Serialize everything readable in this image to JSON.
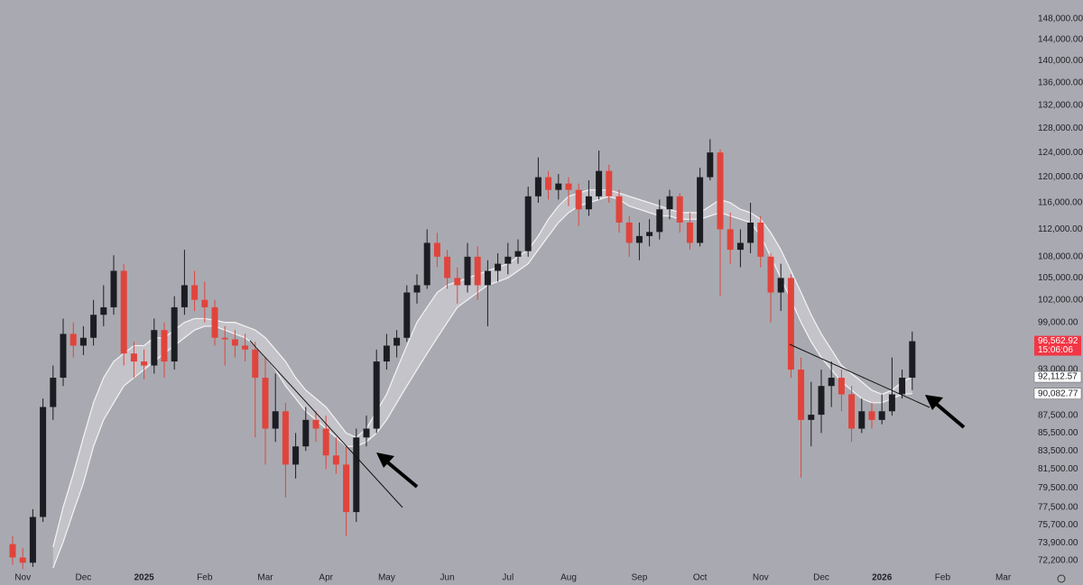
{
  "chart_data": {
    "type": "candlestick",
    "log": true,
    "ylim": [
      71340,
      151760
    ],
    "yticks": [
      {
        "value": 148000,
        "label": "148,000.00"
      },
      {
        "value": 144000,
        "label": "144,000.00"
      },
      {
        "value": 140000,
        "label": "140,000.00"
      },
      {
        "value": 136000,
        "label": "136,000.00"
      },
      {
        "value": 132000,
        "label": "132,000.00"
      },
      {
        "value": 128000,
        "label": "128,000.00"
      },
      {
        "value": 124000,
        "label": "124,000.00"
      },
      {
        "value": 120000,
        "label": "120,000.00"
      },
      {
        "value": 116000,
        "label": "116,000.00"
      },
      {
        "value": 112000,
        "label": "112,000.00"
      },
      {
        "value": 108000,
        "label": "108,000.00"
      },
      {
        "value": 105000,
        "label": "105,000.00"
      },
      {
        "value": 102000,
        "label": "102,000.00"
      },
      {
        "value": 99000,
        "label": "99,000.00"
      },
      {
        "value": 93000,
        "label": "93,000.00"
      },
      {
        "value": 87500,
        "label": "87,500.00"
      },
      {
        "value": 85500,
        "label": "85,500.00"
      },
      {
        "value": 83500,
        "label": "83,500.00"
      },
      {
        "value": 81500,
        "label": "81,500.00"
      },
      {
        "value": 79500,
        "label": "79,500.00"
      },
      {
        "value": 77500,
        "label": "77,500.00"
      },
      {
        "value": 75700,
        "label": "75,700.00"
      },
      {
        "value": 73900,
        "label": "73,900.00"
      },
      {
        "value": 72200,
        "label": "72,200.00"
      }
    ],
    "categories": [
      null,
      "Nov",
      null,
      null,
      null,
      null,
      null,
      "Dec",
      null,
      null,
      null,
      null,
      null,
      "2025",
      null,
      null,
      null,
      null,
      null,
      "Feb",
      null,
      null,
      null,
      null,
      null,
      "Mar",
      null,
      null,
      null,
      null,
      null,
      "Apr",
      null,
      null,
      null,
      null,
      null,
      "May",
      null,
      null,
      null,
      null,
      null,
      "Jun",
      null,
      null,
      null,
      null,
      null,
      "Jul",
      null,
      null,
      null,
      null,
      null,
      "Aug",
      null,
      null,
      null,
      null,
      null,
      null,
      "Sep",
      null,
      null,
      null,
      null,
      null,
      "Oct",
      null,
      null,
      null,
      null,
      null,
      "Nov",
      null,
      null,
      null,
      null,
      null,
      "Dec",
      null,
      null,
      null,
      null,
      null,
      "2026",
      null,
      null,
      null,
      null,
      null,
      "Feb",
      null,
      null,
      null,
      null,
      null,
      "Mar"
    ],
    "up_color": "#1c1d22",
    "down_color": "#e0443c",
    "open": [
      73800,
      72500,
      72000,
      76500,
      88500,
      92000,
      97500,
      96000,
      97000,
      100000,
      101000,
      106000,
      95000,
      94000,
      93500,
      98000,
      94000,
      101000,
      104000,
      102000,
      101000,
      97000,
      96800,
      96000,
      95500,
      92000,
      86000,
      88000,
      82000,
      84000,
      87000,
      86000,
      83000,
      82000,
      77000,
      85000,
      86000,
      94000,
      96000,
      97000,
      103000,
      104000,
      110000,
      108000,
      105000,
      104000,
      108000,
      104000,
      106000,
      107000,
      108000,
      108800,
      117000,
      120000,
      118000,
      119000,
      118000,
      115000,
      117000,
      121000,
      117000,
      113000,
      110000,
      111000,
      111600,
      115000,
      117000,
      113000,
      110000,
      120000,
      124000,
      112000,
      109000,
      110000,
      113000,
      108000,
      103000,
      105000,
      93000,
      87000,
      87600,
      91000,
      92000,
      90000,
      86000,
      88000,
      87000,
      88000,
      90000,
      92000,
      null,
      null,
      null,
      null,
      null,
      null,
      null,
      null,
      null
    ],
    "high": [
      74600,
      73400,
      77300,
      89500,
      93500,
      99500,
      99000,
      98500,
      102000,
      104000,
      108200,
      107000,
      96500,
      95500,
      99500,
      99000,
      102500,
      109000,
      106000,
      104500,
      102000,
      98500,
      98000,
      97500,
      96500,
      94500,
      92500,
      89000,
      85500,
      88500,
      88000,
      87500,
      85000,
      84000,
      86000,
      87500,
      95500,
      97500,
      98000,
      104000,
      105500,
      112000,
      111500,
      109000,
      106500,
      110000,
      109500,
      107500,
      108500,
      110000,
      110500,
      118500,
      123200,
      121000,
      120500,
      120000,
      119000,
      119500,
      124300,
      122000,
      118000,
      114000,
      113000,
      113500,
      116500,
      118000,
      117500,
      114500,
      121500,
      126200,
      124500,
      114500,
      112000,
      116000,
      114000,
      108500,
      107000,
      105500,
      94500,
      91500,
      93000,
      94000,
      93000,
      91000,
      89500,
      89000,
      90000,
      94500,
      93000,
      97800,
      null,
      null,
      null,
      null,
      null,
      null,
      null,
      null,
      null
    ],
    "low": [
      71800,
      71400,
      71600,
      76000,
      87000,
      91000,
      94500,
      94800,
      96000,
      98500,
      100000,
      93500,
      92000,
      91800,
      92500,
      92000,
      93000,
      100000,
      100500,
      99000,
      96000,
      93500,
      94500,
      94000,
      85000,
      82000,
      84500,
      78500,
      80500,
      83500,
      84500,
      81500,
      81000,
      74600,
      76000,
      84000,
      85500,
      93000,
      94500,
      96500,
      101500,
      103500,
      106500,
      103500,
      101500,
      103000,
      102000,
      98500,
      104500,
      105500,
      107000,
      108000,
      116000,
      116500,
      116500,
      115500,
      112500,
      114000,
      116500,
      116000,
      111500,
      108000,
      107500,
      109500,
      110500,
      113500,
      111500,
      109000,
      109500,
      119500,
      102500,
      107000,
      106500,
      108500,
      106500,
      99000,
      100500,
      92000,
      80600,
      84000,
      85500,
      88500,
      88000,
      84500,
      85500,
      86000,
      86500,
      87500,
      89500,
      90500,
      null,
      null,
      null,
      null,
      null,
      null,
      null,
      null,
      null
    ],
    "close": [
      72500,
      72000,
      76500,
      88500,
      92000,
      97500,
      96000,
      97000,
      100000,
      101000,
      106000,
      95000,
      94000,
      93500,
      98000,
      94000,
      101000,
      104000,
      102000,
      101000,
      97000,
      96800,
      96000,
      95500,
      92000,
      86000,
      88000,
      82000,
      84000,
      87000,
      86000,
      83000,
      82000,
      77000,
      85000,
      86000,
      94000,
      96000,
      97000,
      103000,
      104000,
      110000,
      108000,
      105000,
      104000,
      108000,
      104000,
      106000,
      107000,
      108000,
      108800,
      117000,
      120000,
      118000,
      119000,
      118000,
      115000,
      117000,
      121000,
      117000,
      113000,
      110000,
      111000,
      111600,
      115000,
      117000,
      113000,
      110000,
      120000,
      124000,
      112000,
      109000,
      110000,
      113000,
      108000,
      103000,
      105000,
      93000,
      87000,
      87600,
      91000,
      92000,
      90000,
      86000,
      88000,
      87000,
      88000,
      90000,
      92000,
      96562.92,
      null,
      null,
      null,
      null,
      null,
      null,
      null,
      null,
      null
    ],
    "band": {
      "color": "#f4f4f6",
      "upper": [
        null,
        null,
        null,
        null,
        73500,
        77500,
        81000,
        85000,
        89000,
        92000,
        94000,
        95000,
        96000,
        96000,
        97000,
        97000,
        98000,
        99000,
        99500,
        99500,
        99300,
        99000,
        99000,
        98500,
        98000,
        97000,
        95500,
        94000,
        92000,
        90500,
        89500,
        88500,
        87000,
        85500,
        85000,
        86000,
        88000,
        90000,
        93000,
        96000,
        99000,
        101000,
        103000,
        104000,
        104500,
        105000,
        105500,
        106000,
        106500,
        107000,
        108000,
        109000,
        111000,
        113500,
        115500,
        117000,
        117500,
        118000,
        118000,
        118000,
        117500,
        117000,
        116500,
        116000,
        115500,
        115000,
        114500,
        114500,
        114500,
        115500,
        116500,
        116000,
        115000,
        114500,
        113500,
        111500,
        109000,
        106000,
        103000,
        100000,
        97500,
        95500,
        93500,
        92500,
        91500,
        90500,
        90000,
        90500,
        91500,
        92112.57,
        null,
        null,
        null,
        null,
        null,
        null,
        null,
        null,
        null
      ],
      "lower": [
        null,
        null,
        null,
        null,
        71500,
        74000,
        77000,
        80000,
        84000,
        87000,
        89000,
        91000,
        92000,
        93000,
        94000,
        95000,
        96000,
        97000,
        98000,
        98500,
        98500,
        98000,
        97500,
        97000,
        96000,
        94500,
        93000,
        91000,
        89500,
        88000,
        87000,
        86000,
        85000,
        84000,
        84000,
        84500,
        85500,
        87000,
        89000,
        91000,
        93000,
        95000,
        97000,
        99000,
        101000,
        102000,
        103000,
        104000,
        104500,
        105000,
        106000,
        107000,
        109000,
        111000,
        113000,
        114500,
        115500,
        116000,
        116500,
        117000,
        116500,
        115500,
        115000,
        114500,
        114000,
        114000,
        113500,
        113500,
        113500,
        114000,
        114500,
        114000,
        113500,
        113000,
        111000,
        108000,
        105000,
        102000,
        99000,
        96500,
        94500,
        93000,
        91500,
        90500,
        89500,
        89000,
        89000,
        89500,
        90000,
        90082.77,
        null,
        null,
        null,
        null,
        null,
        null,
        null,
        null,
        null
      ]
    },
    "price_labels": [
      {
        "value": 96562.92,
        "label": "96,562.92",
        "time": "15:06:06",
        "color": "#f23645"
      },
      {
        "value": 92112.57,
        "label": "92,112.57",
        "color": "#ffffff"
      },
      {
        "value": 90082.77,
        "label": "90,082.77",
        "color": "#ffffff"
      }
    ]
  }
}
